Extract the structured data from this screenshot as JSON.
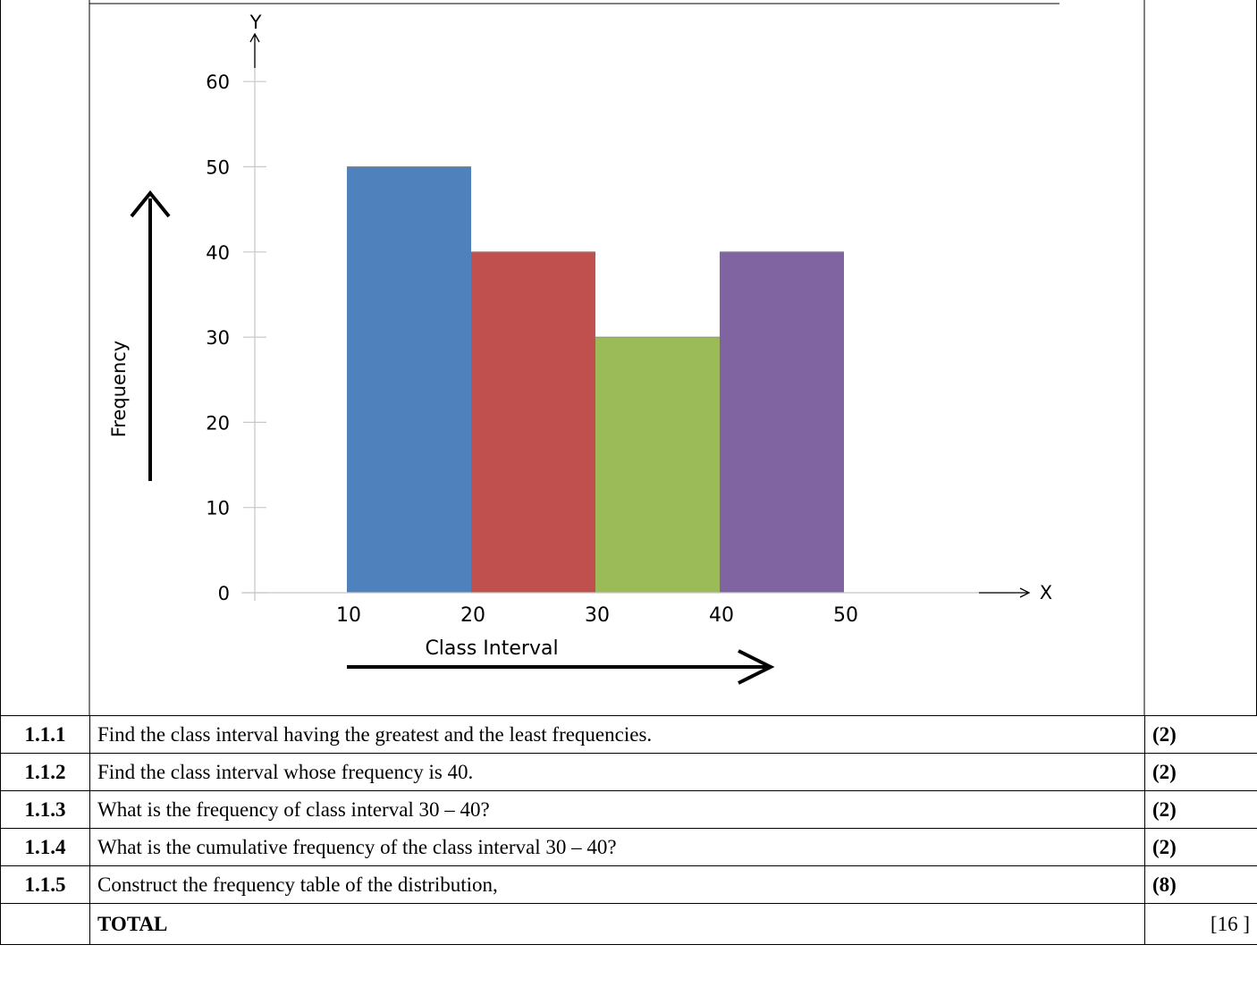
{
  "chart_data": {
    "type": "bar",
    "bin_edges": [
      10,
      20,
      30,
      40,
      50
    ],
    "categories": [
      "10-20",
      "20-30",
      "30-40",
      "40-50"
    ],
    "values": [
      50,
      40,
      30,
      40
    ],
    "bar_colors": [
      "#4f81bd",
      "#c0504d",
      "#9bbb59",
      "#8064a2"
    ],
    "xlabel": "Class Interval",
    "ylabel": "Frequency",
    "x_axis_letter": "X",
    "y_axis_letter": "Y",
    "x_ticks": [
      "10",
      "20",
      "30",
      "40",
      "50"
    ],
    "y_ticks": [
      "0",
      "10",
      "20",
      "30",
      "40",
      "50",
      "60"
    ],
    "ylim": [
      0,
      60
    ],
    "grid": false
  },
  "questions": [
    {
      "number": "1.1.1",
      "text": "Find the class interval having the greatest and the least frequencies.",
      "marks": "(2)"
    },
    {
      "number": "1.1.2",
      "text": "Find the class interval whose frequency is 40.",
      "marks": "(2)"
    },
    {
      "number": "1.1.3",
      "text": "What is the frequency of class interval 30 – 40?",
      "marks": "(2)"
    },
    {
      "number": "1.1.4",
      "text": "What is the cumulative frequency of the class interval 30 – 40?",
      "marks": "(2)"
    },
    {
      "number": "1.1.5",
      "text": "Construct the frequency table of the distribution,",
      "marks": "(8)"
    }
  ],
  "total": {
    "label": "TOTAL",
    "value": "[16 ]"
  }
}
